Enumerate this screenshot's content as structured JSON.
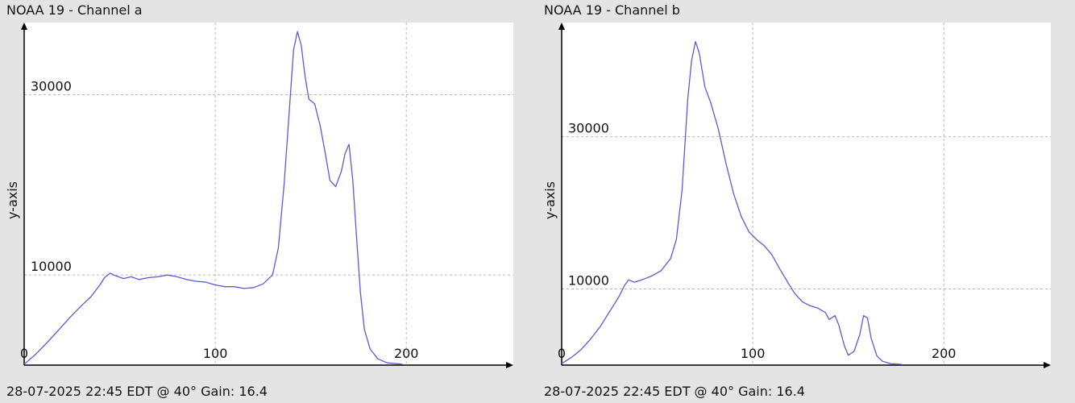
{
  "chart_data": [
    {
      "type": "line",
      "title": "NOAA 19 - Channel a",
      "ylabel": "y-axis",
      "xlabel": "",
      "footer": "28-07-2025 22:45 EDT @ 40° Gain: 16.4",
      "xlim": [
        0,
        256
      ],
      "ylim": [
        0,
        38000
      ],
      "x_ticks": [
        0,
        100,
        200
      ],
      "y_ticks": [
        10000,
        30000
      ],
      "grid": true,
      "line_color": "#5b5bd6",
      "series": [
        {
          "points": [
            [
              0,
              100
            ],
            [
              6,
              1200
            ],
            [
              12,
              2500
            ],
            [
              18,
              3900
            ],
            [
              24,
              5300
            ],
            [
              30,
              6600
            ],
            [
              35,
              7600
            ],
            [
              40,
              9000
            ],
            [
              42,
              9700
            ],
            [
              45,
              10200
            ],
            [
              48,
              9900
            ],
            [
              52,
              9600
            ],
            [
              56,
              9800
            ],
            [
              60,
              9500
            ],
            [
              65,
              9700
            ],
            [
              70,
              9800
            ],
            [
              75,
              10000
            ],
            [
              80,
              9800
            ],
            [
              85,
              9500
            ],
            [
              90,
              9300
            ],
            [
              95,
              9200
            ],
            [
              100,
              8900
            ],
            [
              105,
              8700
            ],
            [
              110,
              8700
            ],
            [
              115,
              8500
            ],
            [
              120,
              8600
            ],
            [
              125,
              9000
            ],
            [
              130,
              10000
            ],
            [
              133,
              13000
            ],
            [
              136,
              20000
            ],
            [
              139,
              29000
            ],
            [
              141,
              35000
            ],
            [
              143,
              37000
            ],
            [
              145,
              35500
            ],
            [
              147,
              32000
            ],
            [
              149,
              29500
            ],
            [
              152,
              29000
            ],
            [
              155,
              26500
            ],
            [
              158,
              23000
            ],
            [
              160,
              20500
            ],
            [
              163,
              19800
            ],
            [
              166,
              21500
            ],
            [
              168,
              23500
            ],
            [
              170,
              24500
            ],
            [
              172,
              20500
            ],
            [
              174,
              14000
            ],
            [
              176,
              8000
            ],
            [
              178,
              4000
            ],
            [
              181,
              1800
            ],
            [
              185,
              700
            ],
            [
              190,
              250
            ],
            [
              198,
              100
            ]
          ]
        }
      ]
    },
    {
      "type": "line",
      "title": "NOAA 19 - Channel b",
      "ylabel": "y-axis",
      "xlabel": "",
      "footer": "28-07-2025 22:45 EDT @ 40° Gain: 16.4",
      "xlim": [
        0,
        256
      ],
      "ylim": [
        0,
        45000
      ],
      "x_ticks": [
        0,
        100,
        200
      ],
      "y_ticks": [
        10000,
        30000
      ],
      "grid": true,
      "line_color": "#5b5bd6",
      "series": [
        {
          "points": [
            [
              0,
              200
            ],
            [
              5,
              1000
            ],
            [
              10,
              2000
            ],
            [
              15,
              3400
            ],
            [
              20,
              5000
            ],
            [
              25,
              7000
            ],
            [
              30,
              9000
            ],
            [
              33,
              10500
            ],
            [
              35,
              11200
            ],
            [
              38,
              10900
            ],
            [
              42,
              11200
            ],
            [
              47,
              11700
            ],
            [
              52,
              12400
            ],
            [
              57,
              14000
            ],
            [
              60,
              16500
            ],
            [
              63,
              23000
            ],
            [
              66,
              35000
            ],
            [
              68,
              40000
            ],
            [
              70,
              42500
            ],
            [
              72,
              41000
            ],
            [
              75,
              36500
            ],
            [
              78,
              34500
            ],
            [
              82,
              31000
            ],
            [
              86,
              26500
            ],
            [
              90,
              22500
            ],
            [
              94,
              19500
            ],
            [
              98,
              17500
            ],
            [
              102,
              16500
            ],
            [
              106,
              15700
            ],
            [
              110,
              14500
            ],
            [
              114,
              12700
            ],
            [
              118,
              11000
            ],
            [
              122,
              9400
            ],
            [
              126,
              8300
            ],
            [
              130,
              7800
            ],
            [
              134,
              7500
            ],
            [
              138,
              6900
            ],
            [
              140,
              6000
            ],
            [
              143,
              6500
            ],
            [
              145,
              5300
            ],
            [
              148,
              2500
            ],
            [
              150,
              1300
            ],
            [
              153,
              1800
            ],
            [
              156,
              4000
            ],
            [
              158,
              6500
            ],
            [
              160,
              6200
            ],
            [
              162,
              3500
            ],
            [
              165,
              1200
            ],
            [
              168,
              500
            ],
            [
              172,
              200
            ],
            [
              178,
              100
            ]
          ]
        }
      ]
    }
  ]
}
